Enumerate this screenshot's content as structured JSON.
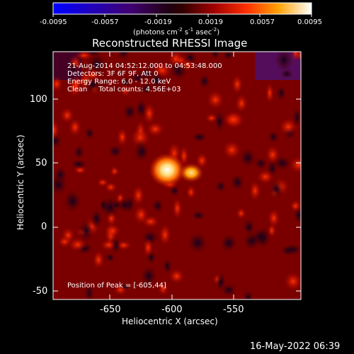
{
  "colorbar": {
    "ticks": [
      "-0.0095",
      "-0.0057",
      "-0.0019",
      "0.0019",
      "0.0057",
      "0.0095"
    ],
    "unit_label": "(photons cm",
    "unit_exp1": "-2",
    "unit_mid": " s",
    "unit_exp2": "-1",
    "unit_mid2": " asec",
    "unit_exp3": "-2",
    "unit_close": ")"
  },
  "title": "Reconstructed RHESSI Image",
  "info": {
    "time_range": "21-Aug-2014 04:52:12.000 to 04:53:48.000",
    "detectors": "Detectors: 3F 6F 9F, Att 0",
    "energy": "Energy Range: 6.0 - 12.0 keV",
    "clean": "Clean     Total counts: 4.56E+03"
  },
  "peak_label": "Position of Peak = [-605,44]",
  "axes": {
    "xlabel": "Heliocentric X (arcsec)",
    "ylabel": "Heliocentric Y (arcsec)",
    "xticks": [
      "-650",
      "-600",
      "-550"
    ],
    "yticks": [
      "100",
      "50",
      "0",
      "-50"
    ]
  },
  "footer_date": "16-May-2022 06:39",
  "colors": {
    "background": "#000000",
    "foreground": "#ffffff"
  }
}
